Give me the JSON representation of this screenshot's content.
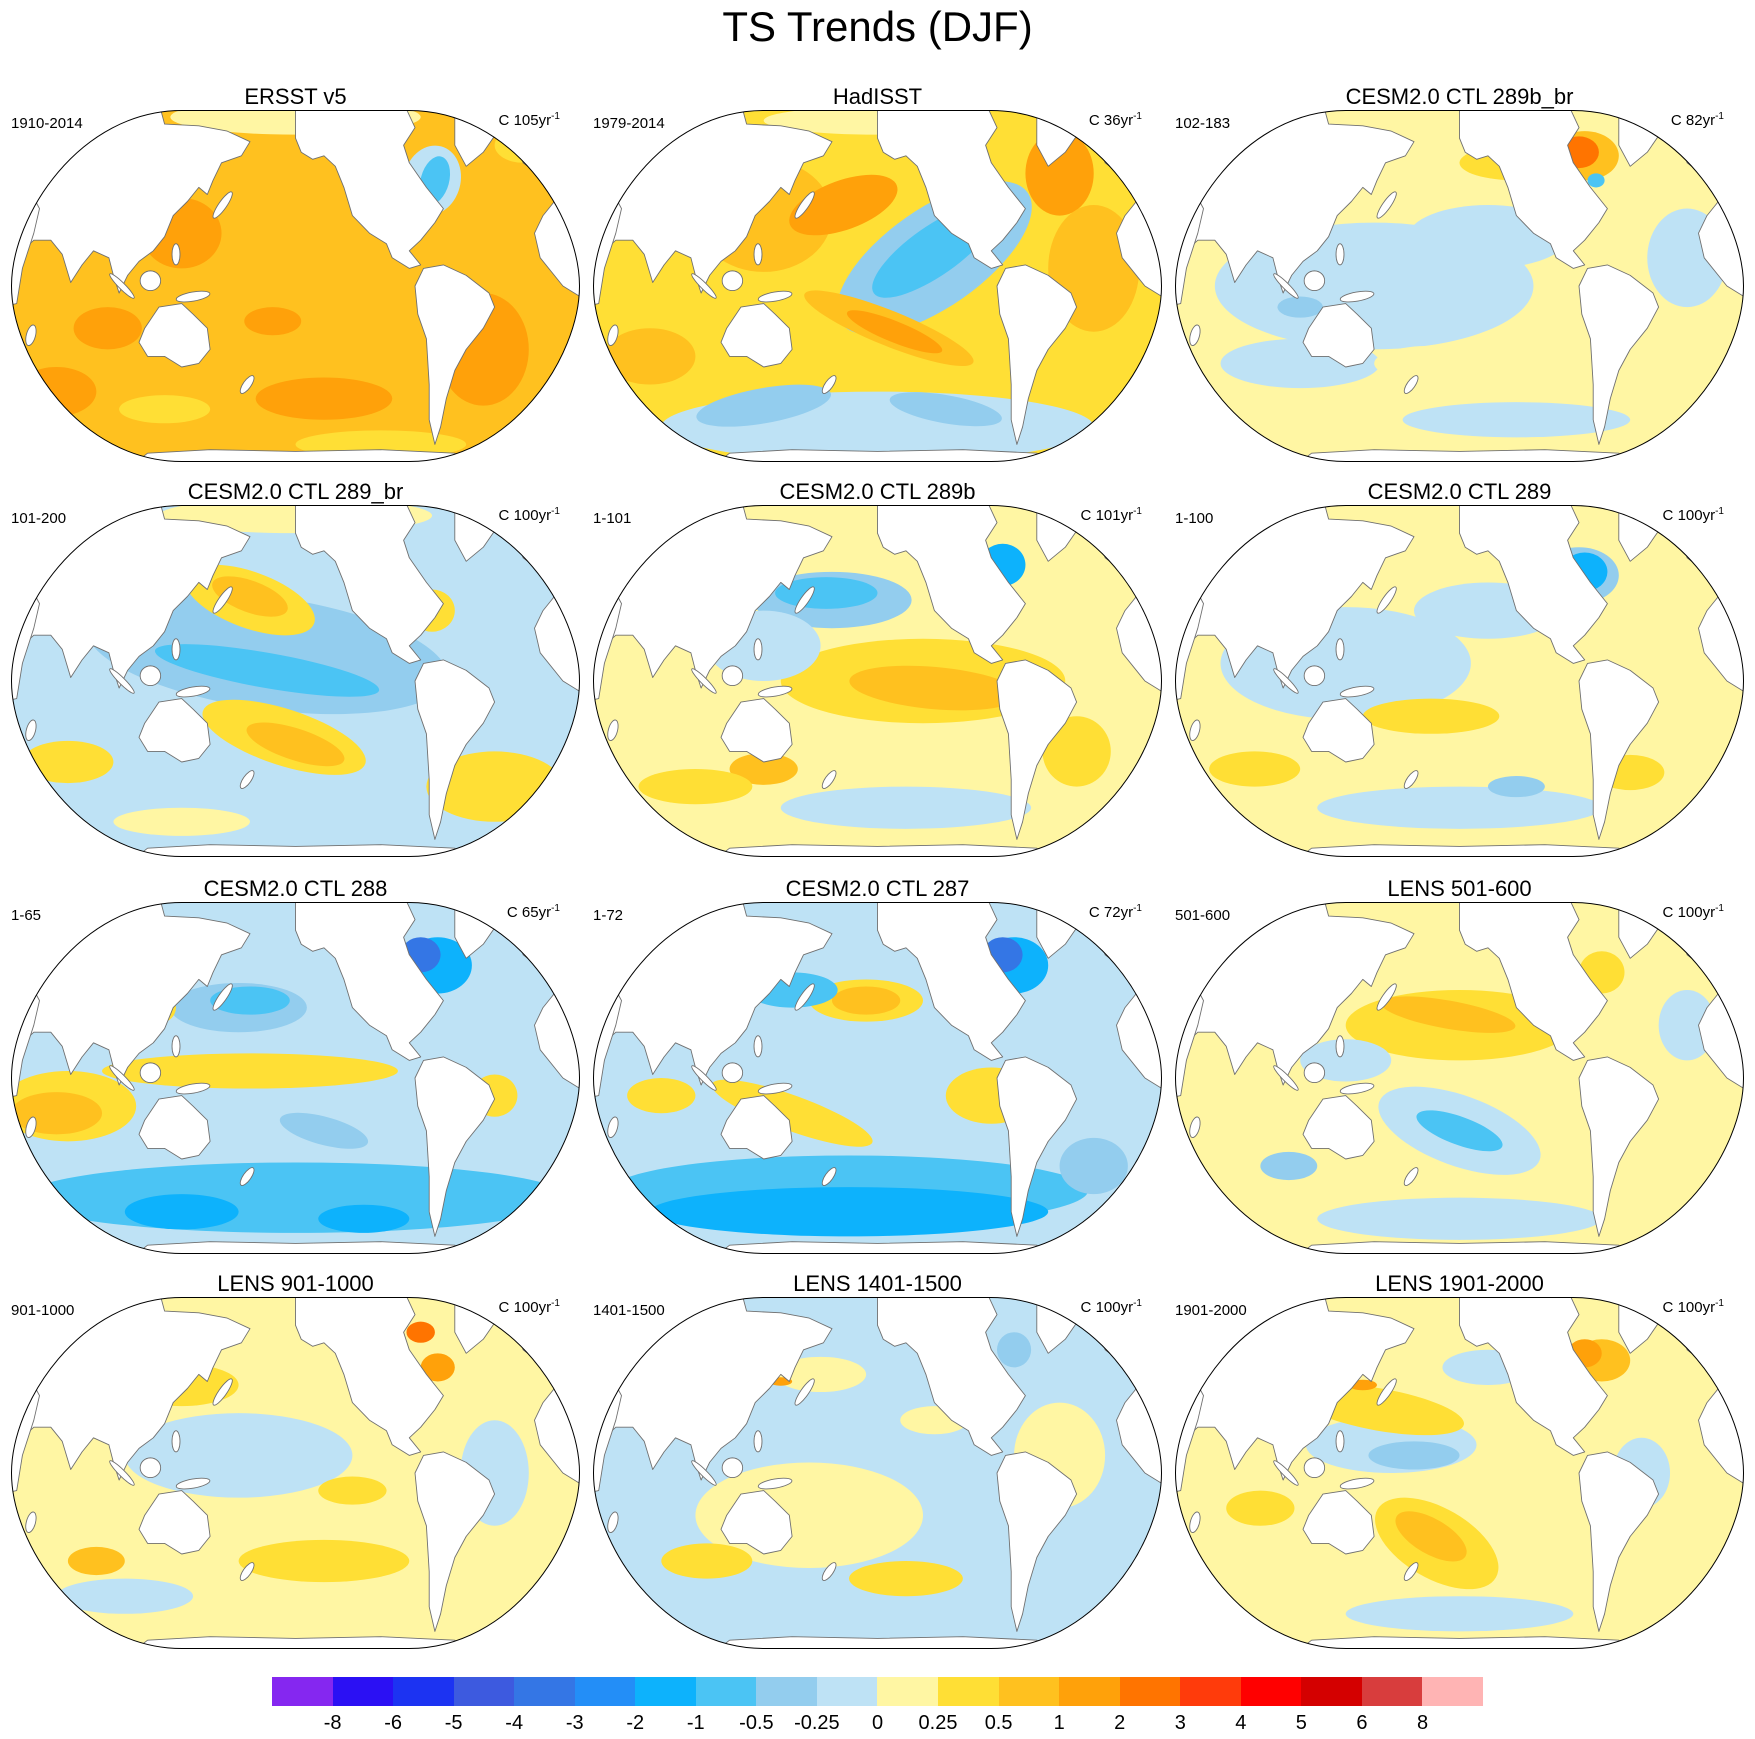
{
  "figure_title": "TS Trends (DJF)",
  "panels": [
    {
      "title": "ERSST v5",
      "period": "1910-2014",
      "unit": "C",
      "trend_length": "105yr",
      "exponent": "-1"
    },
    {
      "title": "HadISST",
      "period": "1979-2014",
      "unit": "C",
      "trend_length": "36yr",
      "exponent": "-1"
    },
    {
      "title": "CESM2.0 CTL 289b_br",
      "period": "102-183",
      "unit": "C",
      "trend_length": "82yr",
      "exponent": "-1"
    },
    {
      "title": "CESM2.0 CTL 289_br",
      "period": "101-200",
      "unit": "C",
      "trend_length": "100yr",
      "exponent": "-1"
    },
    {
      "title": "CESM2.0 CTL 289b",
      "period": "1-101",
      "unit": "C",
      "trend_length": "101yr",
      "exponent": "-1"
    },
    {
      "title": "CESM2.0 CTL 289",
      "period": "1-100",
      "unit": "C",
      "trend_length": "100yr",
      "exponent": "-1"
    },
    {
      "title": "CESM2.0 CTL 288",
      "period": "1-65",
      "unit": "C",
      "trend_length": "65yr",
      "exponent": "-1"
    },
    {
      "title": "CESM2.0 CTL 287",
      "period": "1-72",
      "unit": "C",
      "trend_length": "72yr",
      "exponent": "-1"
    },
    {
      "title": "LENS 501-600",
      "period": "501-600",
      "unit": "C",
      "trend_length": "100yr",
      "exponent": "-1"
    },
    {
      "title": "LENS 901-1000",
      "period": "901-1000",
      "unit": "C",
      "trend_length": "100yr",
      "exponent": "-1"
    },
    {
      "title": "LENS 1401-1500",
      "period": "1401-1500",
      "unit": "C",
      "trend_length": "100yr",
      "exponent": "-1"
    },
    {
      "title": "LENS 1901-2000",
      "period": "1901-2000",
      "unit": "C",
      "trend_length": "100yr",
      "exponent": "-1"
    }
  ],
  "colorbar": {
    "labels": [
      "-8",
      "-6",
      "-5",
      "-4",
      "-3",
      "-2",
      "-1",
      "-0.5",
      "-0.25",
      "0",
      "0.25",
      "0.5",
      "1",
      "2",
      "3",
      "4",
      "5",
      "6",
      "8"
    ],
    "colors": [
      "#8527f0",
      "#2b10f4",
      "#1c33f2",
      "#3d5adf",
      "#3476e5",
      "#238ef7",
      "#0db2fc",
      "#4bc4f4",
      "#93cdee",
      "#bee2f5",
      "#fff6a3",
      "#ffdf35",
      "#ffc11f",
      "#ffa10a",
      "#ff7400",
      "#ff3b0b",
      "#ff0000",
      "#d40000",
      "#d83d3d",
      "#ffb4b4"
    ]
  },
  "land_color": "#ffffff",
  "coast_color": "#707070"
}
